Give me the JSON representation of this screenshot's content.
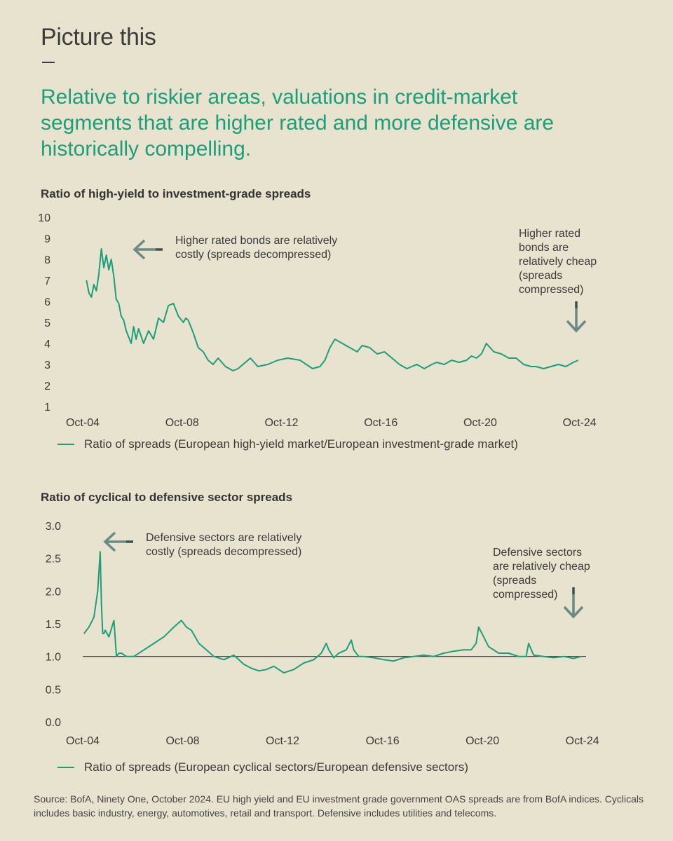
{
  "kicker": "Picture this",
  "headline": "Relative to riskier areas, valuations in credit-market segments that are higher rated and more defensive are historically compelling.",
  "colors": {
    "background": "#e8e3cf",
    "accent": "#1d9e7a",
    "arrow": "#6a8a86",
    "arrow_dark": "#3d4f4c",
    "text": "#3a3a3a"
  },
  "chart_data": [
    {
      "type": "line",
      "title": "Ratio of high-yield to investment-grade spreads",
      "x_range": [
        2004.75,
        2024.9
      ],
      "x_ticks": [
        {
          "value": 2004.75,
          "label": "Oct-04"
        },
        {
          "value": 2008.75,
          "label": "Oct-08"
        },
        {
          "value": 2012.75,
          "label": "Oct-12"
        },
        {
          "value": 2016.75,
          "label": "Oct-16"
        },
        {
          "value": 2020.75,
          "label": "Oct-20"
        },
        {
          "value": 2024.75,
          "label": "Oct-24"
        }
      ],
      "ylim": [
        1,
        10
      ],
      "y_ticks": [
        1,
        2,
        3,
        4,
        5,
        6,
        7,
        8,
        9,
        10
      ],
      "y_decimals": 0,
      "reference_line": null,
      "series": [
        {
          "name": "Ratio of spreads (European high-yield market/European investment-grade market)",
          "x": [
            2004.9,
            2005.0,
            2005.1,
            2005.2,
            2005.3,
            2005.4,
            2005.5,
            2005.6,
            2005.7,
            2005.8,
            2005.9,
            2006.0,
            2006.1,
            2006.2,
            2006.3,
            2006.4,
            2006.5,
            2006.6,
            2006.7,
            2006.8,
            2006.9,
            2007.0,
            2007.2,
            2007.4,
            2007.6,
            2007.8,
            2008.0,
            2008.2,
            2008.4,
            2008.6,
            2008.8,
            2008.9,
            2009.0,
            2009.2,
            2009.4,
            2009.6,
            2009.8,
            2010.0,
            2010.2,
            2010.5,
            2010.8,
            2011.0,
            2011.2,
            2011.5,
            2011.8,
            2012.2,
            2012.6,
            2013.0,
            2013.5,
            2014.0,
            2014.3,
            2014.5,
            2014.7,
            2014.9,
            2015.2,
            2015.5,
            2015.8,
            2016.0,
            2016.3,
            2016.6,
            2016.9,
            2017.2,
            2017.5,
            2017.8,
            2018.0,
            2018.2,
            2018.5,
            2018.8,
            2019.0,
            2019.3,
            2019.6,
            2019.9,
            2020.2,
            2020.4,
            2020.6,
            2020.8,
            2021.0,
            2021.3,
            2021.6,
            2021.9,
            2022.2,
            2022.5,
            2022.8,
            2023.0,
            2023.3,
            2023.6,
            2023.9,
            2024.2,
            2024.5,
            2024.7
          ],
          "y": [
            7.0,
            6.4,
            6.2,
            6.8,
            6.5,
            7.3,
            8.5,
            7.6,
            8.2,
            7.5,
            8.0,
            7.2,
            6.1,
            5.9,
            5.3,
            5.1,
            4.6,
            4.3,
            4.0,
            4.8,
            4.2,
            4.7,
            4.0,
            4.6,
            4.2,
            5.2,
            5.0,
            5.8,
            5.9,
            5.3,
            5.0,
            5.2,
            5.1,
            4.5,
            3.8,
            3.6,
            3.2,
            3.0,
            3.3,
            2.9,
            2.7,
            2.8,
            3.0,
            3.3,
            2.9,
            3.0,
            3.2,
            3.3,
            3.2,
            2.8,
            2.9,
            3.2,
            3.8,
            4.2,
            4.0,
            3.8,
            3.6,
            3.9,
            3.8,
            3.5,
            3.6,
            3.3,
            3.0,
            2.8,
            2.9,
            3.0,
            2.8,
            3.0,
            3.1,
            3.0,
            3.2,
            3.1,
            3.2,
            3.4,
            3.3,
            3.5,
            4.0,
            3.6,
            3.5,
            3.3,
            3.3,
            3.0,
            2.9,
            2.9,
            2.8,
            2.9,
            3.0,
            2.9,
            3.1,
            3.2
          ]
        }
      ],
      "annotations": [
        {
          "text_lines": [
            "Higher rated bonds are relatively",
            "costly (spreads decompressed)"
          ],
          "arrow": "left"
        },
        {
          "text_lines": [
            "Higher rated",
            "bonds are",
            "relatively cheap",
            "(spreads",
            "compressed)"
          ],
          "arrow": "down"
        }
      ]
    },
    {
      "type": "line",
      "title": "Ratio of cyclical to defensive sector spreads",
      "x_range": [
        2004.75,
        2024.9
      ],
      "x_ticks": [
        {
          "value": 2004.75,
          "label": "Oct-04"
        },
        {
          "value": 2008.75,
          "label": "Oct-08"
        },
        {
          "value": 2012.75,
          "label": "Oct-12"
        },
        {
          "value": 2016.75,
          "label": "Oct-16"
        },
        {
          "value": 2020.75,
          "label": "Oct-20"
        },
        {
          "value": 2024.75,
          "label": "Oct-24"
        }
      ],
      "ylim": [
        0,
        3
      ],
      "y_ticks": [
        0,
        0.5,
        1,
        1.5,
        2,
        2.5,
        3
      ],
      "y_decimals": 1,
      "reference_line": 1.0,
      "series": [
        {
          "name": "Ratio of spreads (European cyclical sectors/European defensive sectors)",
          "x": [
            2004.8,
            2005.0,
            2005.2,
            2005.35,
            2005.45,
            2005.5,
            2005.55,
            2005.6,
            2005.65,
            2005.8,
            2006.0,
            2006.1,
            2006.2,
            2006.3,
            2006.5,
            2006.8,
            2007.2,
            2007.6,
            2008.0,
            2008.4,
            2008.7,
            2008.9,
            2009.1,
            2009.4,
            2009.7,
            2010.0,
            2010.4,
            2010.8,
            2011.2,
            2011.5,
            2011.8,
            2012.1,
            2012.4,
            2012.8,
            2013.2,
            2013.6,
            2014.0,
            2014.3,
            2014.5,
            2014.6,
            2014.8,
            2015.0,
            2015.3,
            2015.5,
            2015.6,
            2015.8,
            2016.0,
            2016.4,
            2016.8,
            2017.2,
            2017.6,
            2018.0,
            2018.4,
            2018.8,
            2019.2,
            2019.6,
            2020.0,
            2020.3,
            2020.5,
            2020.6,
            2020.8,
            2021.0,
            2021.4,
            2021.8,
            2022.2,
            2022.5,
            2022.6,
            2022.8,
            2023.2,
            2023.6,
            2024.0,
            2024.4,
            2024.7
          ],
          "y": [
            1.35,
            1.45,
            1.6,
            2.0,
            2.6,
            1.8,
            1.35,
            1.35,
            1.4,
            1.3,
            1.55,
            1.0,
            1.05,
            1.05,
            1.0,
            1.0,
            1.1,
            1.2,
            1.3,
            1.45,
            1.55,
            1.45,
            1.4,
            1.2,
            1.1,
            1.0,
            0.95,
            1.02,
            0.88,
            0.82,
            0.78,
            0.8,
            0.85,
            0.75,
            0.8,
            0.9,
            0.95,
            1.05,
            1.2,
            1.1,
            0.98,
            1.05,
            1.1,
            1.25,
            1.1,
            1.0,
            1.0,
            0.98,
            0.95,
            0.93,
            0.98,
            1.0,
            1.02,
            1.0,
            1.05,
            1.08,
            1.1,
            1.1,
            1.2,
            1.45,
            1.3,
            1.15,
            1.05,
            1.05,
            1.0,
            1.0,
            1.2,
            1.02,
            1.0,
            0.98,
            1.0,
            0.97,
            1.0
          ]
        }
      ],
      "annotations": [
        {
          "text_lines": [
            "Defensive sectors are relatively",
            "costly (spreads decompressed)"
          ],
          "arrow": "left"
        },
        {
          "text_lines": [
            "Defensive sectors",
            "are relatively cheap",
            "(spreads",
            "compressed)"
          ],
          "arrow": "down"
        }
      ]
    }
  ],
  "source": "Source: BofA, Ninety One, October 2024. EU high yield and EU investment grade government OAS spreads are from BofA indices. Cyclicals includes basic industry, energy, automotives, retail and transport. Defensive includes utilities and telecoms."
}
